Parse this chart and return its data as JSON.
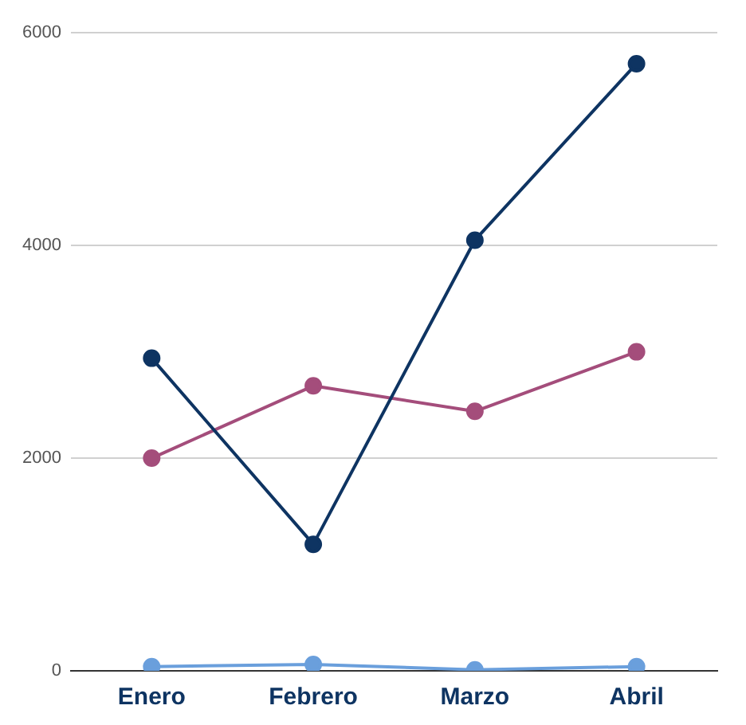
{
  "chart_data": {
    "type": "line",
    "categories": [
      "Enero",
      "Febrero",
      "Marzo",
      "Abril"
    ],
    "series": [
      {
        "color": "#0e3462",
        "values": [
          2940,
          1190,
          4050,
          5710
        ]
      },
      {
        "color": "#a44d7b",
        "values": [
          2000,
          2680,
          2440,
          3000
        ]
      },
      {
        "color": "#6a9fdc",
        "values": [
          40,
          60,
          10,
          40
        ]
      }
    ],
    "ylim": [
      0,
      6000
    ],
    "yticks": [
      0,
      2000,
      4000,
      6000
    ],
    "grid": "y",
    "legend": false,
    "marker": "circle",
    "line_style": "solid"
  }
}
